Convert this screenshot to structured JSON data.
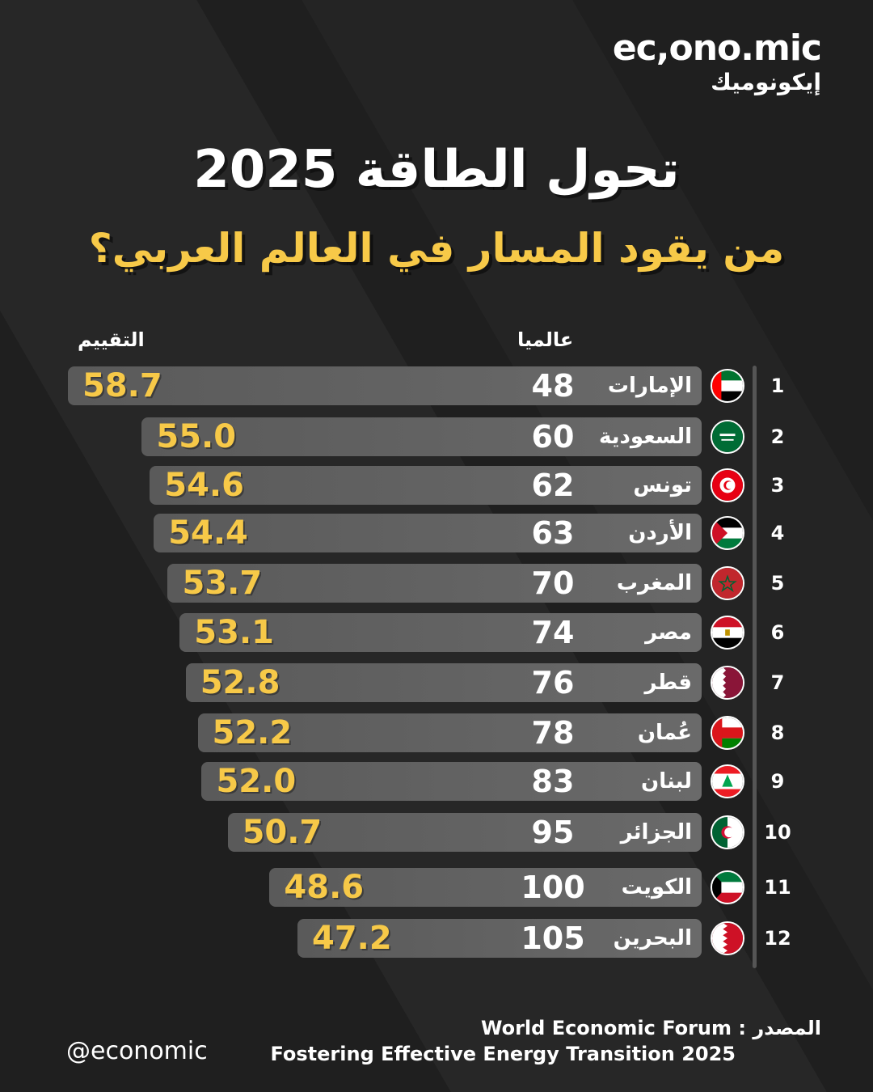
{
  "brand": {
    "logo_latin": "ec,ono.mic",
    "logo_arabic": "إيكونوميك"
  },
  "header": {
    "title": "تحول الطاقة 2025",
    "subtitle": "من يقود المسار في العالم العربي؟"
  },
  "columns": {
    "score": "التقييم",
    "global": "عالميا"
  },
  "colors": {
    "background": "#1f1f1f",
    "accent": "#f7c948",
    "bar": "#626262"
  },
  "chart_data": {
    "type": "bar",
    "title": "تحول الطاقة 2025",
    "subtitle": "من يقود المسار في العالم العربي؟",
    "orientation": "horizontal",
    "categories": [
      "الإمارات",
      "السعودية",
      "تونس",
      "الأردن",
      "المغرب",
      "مصر",
      "قطر",
      "عُمان",
      "لبنان",
      "الجزائر",
      "الكويت",
      "البحرين"
    ],
    "ranks": [
      "1",
      "2",
      "3",
      "4",
      "5",
      "6",
      "7",
      "8",
      "9",
      "10",
      "11",
      "12"
    ],
    "global_rank": [
      "48",
      "60",
      "62",
      "63",
      "70",
      "74",
      "76",
      "78",
      "83",
      "95",
      "100",
      "105"
    ],
    "values": [
      58.7,
      55.0,
      54.6,
      54.4,
      53.7,
      53.1,
      52.8,
      52.2,
      52.0,
      50.7,
      48.6,
      47.2
    ],
    "value_labels": [
      "58.7",
      "55.0",
      "54.6",
      "54.4",
      "53.7",
      "53.1",
      "52.8",
      "52.2",
      "52.0",
      "50.7",
      "48.6",
      "47.2"
    ],
    "flags": [
      "uae-flag-icon",
      "saudi-flag-icon",
      "tunisia-flag-icon",
      "jordan-flag-icon",
      "morocco-flag-icon",
      "egypt-flag-icon",
      "qatar-flag-icon",
      "oman-flag-icon",
      "lebanon-flag-icon",
      "algeria-flag-icon",
      "kuwait-flag-icon",
      "bahrain-flag-icon"
    ],
    "xlim": [
      0,
      58.7
    ]
  },
  "footer": {
    "source_line1": "World Economic Forum : المصدر",
    "source_line2": "Fostering Effective Energy Transition 2025",
    "handle": "@economic"
  }
}
